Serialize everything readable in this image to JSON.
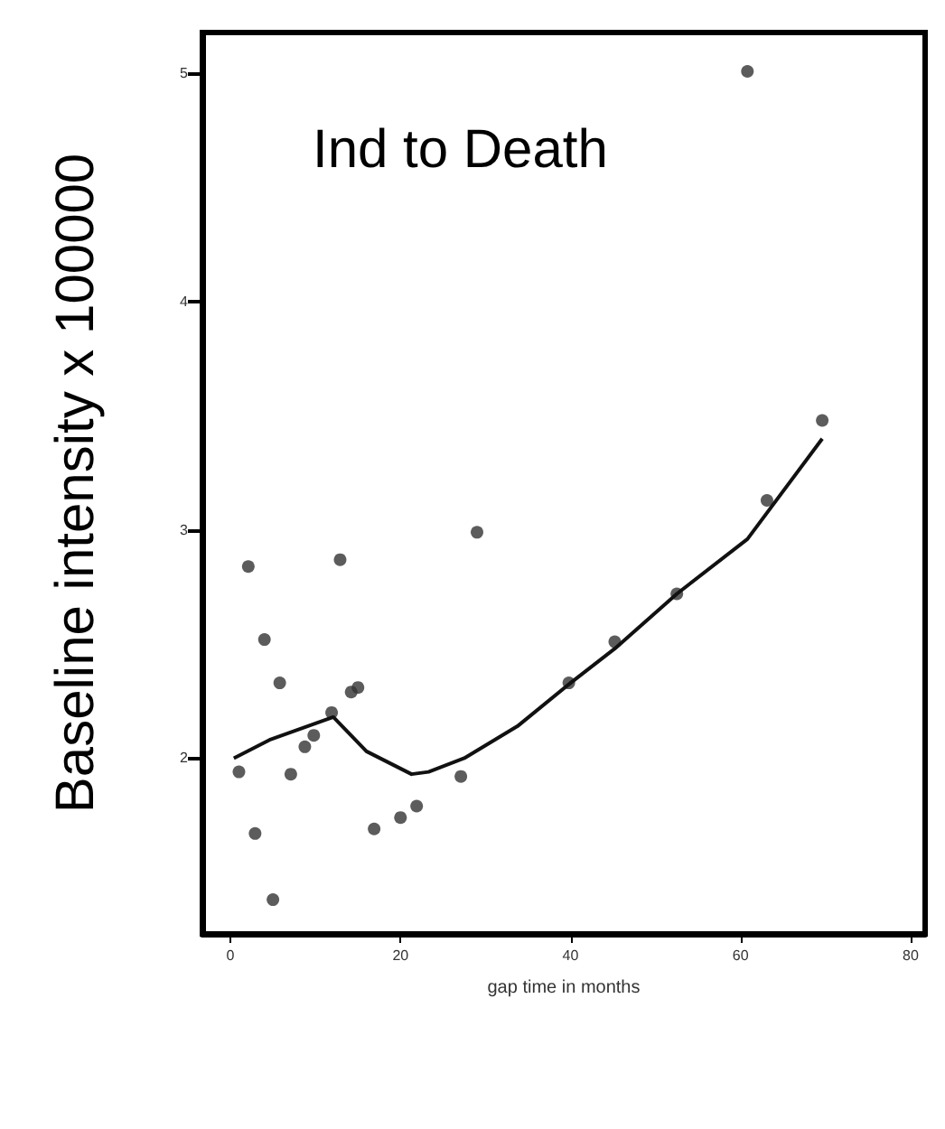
{
  "chart_data": {
    "type": "scatter",
    "title": "Ind to Death",
    "xlabel": "gap time in months",
    "ylabel": "Baseline intensity x 100000",
    "xlim": [
      -3.3,
      81.7
    ],
    "ylim": [
      1.23,
      5.18
    ],
    "xticks": [
      0,
      20,
      40,
      60,
      80
    ],
    "yticks": [
      2,
      3,
      4,
      5
    ],
    "grid": false,
    "marker": "circle",
    "series": [
      {
        "color": "#333333",
        "x": [
          1,
          2.1,
          2.9,
          4,
          5,
          5.8,
          7.1,
          8.75,
          9.8,
          11.9,
          12.9,
          14.2,
          15,
          16.9,
          20,
          21.9,
          27.1,
          29,
          39.8,
          45.2,
          52.5,
          60.8,
          63.1,
          69.6
        ],
        "values": [
          1.94,
          2.84,
          1.67,
          2.52,
          1.38,
          2.33,
          1.93,
          2.05,
          2.1,
          2.2,
          2.87,
          2.29,
          2.31,
          1.69,
          1.74,
          1.79,
          1.92,
          2.99,
          2.33,
          2.51,
          2.72,
          5.01,
          3.13,
          3.48
        ]
      },
      {
        "type": "line",
        "color": "#111111",
        "marker": "none",
        "line_style": "solid",
        "x": [
          0.4,
          4.6,
          12.1,
          16,
          21.3,
          23.3,
          27.5,
          33.75,
          40,
          45.2,
          52.5,
          60.8,
          69.6
        ],
        "values": [
          2.0,
          2.08,
          2.18,
          2.03,
          1.93,
          1.94,
          2.0,
          2.14,
          2.33,
          2.48,
          2.72,
          2.96,
          3.4
        ]
      }
    ]
  }
}
